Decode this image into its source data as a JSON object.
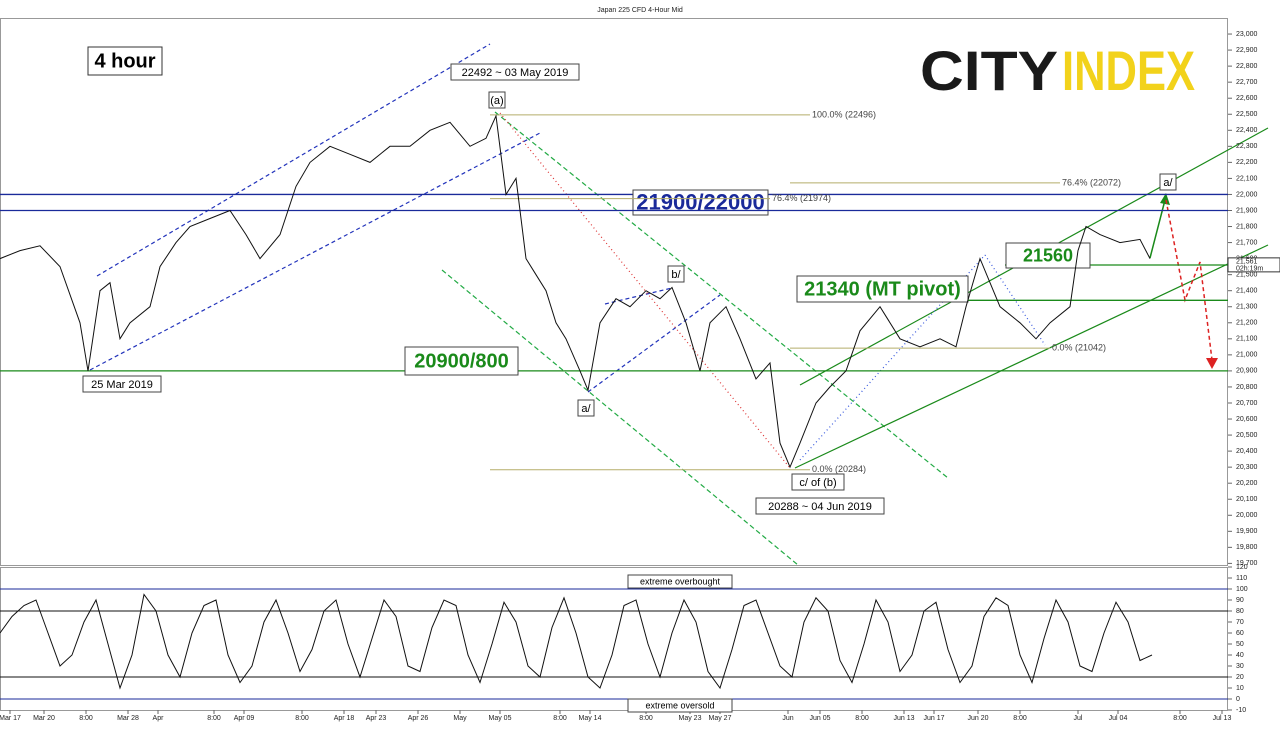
{
  "chart_data": [
    {
      "type": "line",
      "title": "Japan 225 CFD 4-Hour Mid",
      "timeframe": "4 hour",
      "logo": [
        "CITY",
        "INDEX"
      ],
      "last_price": "21,561",
      "countdown": "02h:19m",
      "color": "#111111",
      "x": [
        0,
        10,
        20,
        30,
        40,
        44,
        50,
        55,
        60,
        65,
        75,
        80,
        88,
        95,
        105,
        115,
        123,
        130,
        140,
        148,
        155,
        165,
        175,
        185,
        195,
        205,
        215,
        225,
        235,
        243,
        248,
        253,
        258,
        263,
        268,
        273,
        278,
        283,
        290,
        294,
        300,
        308,
        315,
        323,
        330,
        336,
        343,
        350,
        355,
        363,
        370,
        378,
        385,
        390,
        395,
        400,
        408,
        415,
        423,
        430,
        440,
        450,
        460,
        470,
        478,
        483,
        490,
        495,
        500,
        510,
        518,
        525,
        535,
        539,
        543,
        550,
        560,
        570,
        575
      ],
      "values": [
        21600,
        21650,
        21680,
        21550,
        21200,
        20900,
        21400,
        21450,
        21100,
        21200,
        21300,
        21550,
        21700,
        21800,
        21850,
        21900,
        21750,
        21600,
        21750,
        22050,
        22200,
        22300,
        22250,
        22200,
        22300,
        22300,
        22400,
        22450,
        22300,
        22350,
        22490,
        22000,
        22100,
        21600,
        21500,
        21400,
        21200,
        21100,
        20900,
        20780,
        21200,
        21350,
        21300,
        21400,
        21350,
        21420,
        21200,
        20900,
        21200,
        21300,
        21100,
        20850,
        20950,
        20450,
        20300,
        20450,
        20700,
        20800,
        20900,
        21150,
        21300,
        21100,
        21050,
        21100,
        21050,
        21300,
        21600,
        21450,
        21300,
        21200,
        21100,
        21200,
        21300,
        21650,
        21800,
        21750,
        21700,
        21720,
        21600
      ],
      "xlim": [
        0,
        614
      ],
      "ylim": [
        19690,
        23100
      ],
      "yticks": [
        {
          "value": 19700,
          "label": "19,700"
        },
        {
          "value": 19800,
          "label": "19,800"
        },
        {
          "value": 19900,
          "label": "19,900"
        },
        {
          "value": 20000,
          "label": "20,000"
        },
        {
          "value": 20100,
          "label": "20,100"
        },
        {
          "value": 20200,
          "label": "20,200"
        },
        {
          "value": 20300,
          "label": "20,300"
        },
        {
          "value": 20400,
          "label": "20,400"
        },
        {
          "value": 20500,
          "label": "20,500"
        },
        {
          "value": 20600,
          "label": "20,600"
        },
        {
          "value": 20700,
          "label": "20,700"
        },
        {
          "value": 20800,
          "label": "20,800"
        },
        {
          "value": 20900,
          "label": "20,900"
        },
        {
          "value": 21000,
          "label": "21,000"
        },
        {
          "value": 21100,
          "label": "21,100"
        },
        {
          "value": 21200,
          "label": "21,200"
        },
        {
          "value": 21300,
          "label": "21,300"
        },
        {
          "value": 21400,
          "label": "21,400"
        },
        {
          "value": 21500,
          "label": "21,500"
        },
        {
          "value": 21600,
          "label": "21,600"
        },
        {
          "value": 21700,
          "label": "21,700"
        },
        {
          "value": 21800,
          "label": "21,800"
        },
        {
          "value": 21900,
          "label": "21,900"
        },
        {
          "value": 22000,
          "label": "22,000"
        },
        {
          "value": 22100,
          "label": "22,100"
        },
        {
          "value": 22200,
          "label": "22,200"
        },
        {
          "value": 22300,
          "label": "22,300"
        },
        {
          "value": 22400,
          "label": "22,400"
        },
        {
          "value": 22500,
          "label": "22,500"
        },
        {
          "value": 22600,
          "label": "22,600"
        },
        {
          "value": 22700,
          "label": "22,700"
        },
        {
          "value": 22800,
          "label": "22,800"
        },
        {
          "value": 22900,
          "label": "22,900"
        },
        {
          "value": 23000,
          "label": "23,000"
        }
      ],
      "xticks": [
        {
          "value": 5,
          "label": "Mar 17"
        },
        {
          "value": 22,
          "label": "Mar 20"
        },
        {
          "value": 43,
          "label": "8:00"
        },
        {
          "value": 64,
          "label": "Mar 28"
        },
        {
          "value": 79,
          "label": "Apr"
        },
        {
          "value": 107,
          "label": "8:00"
        },
        {
          "value": 122,
          "label": "Apr 09"
        },
        {
          "value": 151,
          "label": "8:00"
        },
        {
          "value": 172,
          "label": "Apr 18"
        },
        {
          "value": 188,
          "label": "Apr 23"
        },
        {
          "value": 209,
          "label": "Apr 26"
        },
        {
          "value": 230,
          "label": "May"
        },
        {
          "value": 250,
          "label": "May 05"
        },
        {
          "value": 280,
          "label": "8:00"
        },
        {
          "value": 295,
          "label": "May 14"
        },
        {
          "value": 323,
          "label": "8:00"
        },
        {
          "value": 345,
          "label": "May 23"
        },
        {
          "value": 360,
          "label": "May 27"
        },
        {
          "value": 394,
          "label": "Jun"
        },
        {
          "value": 410,
          "label": "Jun 05"
        },
        {
          "value": 431,
          "label": "8:00"
        },
        {
          "value": 452,
          "label": "Jun 13"
        },
        {
          "value": 467,
          "label": "Jun 17"
        },
        {
          "value": 489,
          "label": "Jun 20"
        },
        {
          "value": 510,
          "label": "8:00"
        },
        {
          "value": 539,
          "label": "Jul"
        },
        {
          "value": 559,
          "label": "Jul 04"
        },
        {
          "value": 590,
          "label": "8:00"
        },
        {
          "value": 611,
          "label": "Jul 13"
        }
      ],
      "levels": [
        {
          "value": 22000,
          "color": "#1a2a9a",
          "label": "21900/22000"
        },
        {
          "value": 21900,
          "color": "#1a2a9a"
        },
        {
          "value": 20900,
          "color": "#1a8a1a",
          "label": "20900/800"
        },
        {
          "value": 21340,
          "color": "#1a8a1a",
          "label": "21340 (MT pivot)"
        },
        {
          "value": 21560,
          "color": "#1a8a1a",
          "label": "21560"
        }
      ],
      "fib": [
        {
          "value": 22496,
          "label": "100.0% (22496)"
        },
        {
          "value": 21974,
          "label": "76.4% (21974)"
        },
        {
          "value": 22072,
          "label": "76.4% (22072)"
        },
        {
          "value": 21042,
          "label": "0.0% (21042)"
        },
        {
          "value": 20284,
          "label": "0.0% (20284)"
        }
      ],
      "annotations": [
        "22492 ~ 03 May 2019",
        "(a)",
        "25 Mar 2019",
        "b/",
        "a/",
        "c/ of (b)",
        "20288 ~ 04 Jun 2019",
        "a/"
      ]
    },
    {
      "type": "line",
      "color": "#111111",
      "x": [
        0,
        6,
        12,
        18,
        24,
        30,
        36,
        42,
        48,
        54,
        60,
        66,
        72,
        78,
        84,
        90,
        96,
        102,
        108,
        114,
        120,
        126,
        132,
        138,
        144,
        150,
        156,
        162,
        168,
        174,
        180,
        186,
        192,
        198,
        204,
        210,
        216,
        222,
        228,
        234,
        240,
        246,
        252,
        258,
        264,
        270,
        276,
        282,
        288,
        294,
        300,
        306,
        312,
        318,
        324,
        330,
        336,
        342,
        348,
        354,
        360,
        366,
        372,
        378,
        384,
        390,
        396,
        402,
        408,
        414,
        420,
        426,
        432,
        438,
        444,
        450,
        456,
        462,
        468,
        474,
        480,
        486,
        492,
        498,
        504,
        510,
        516,
        522,
        528,
        534,
        540,
        546,
        552,
        558,
        564,
        570,
        576
      ],
      "values": [
        60,
        75,
        85,
        90,
        60,
        30,
        40,
        70,
        90,
        50,
        10,
        40,
        95,
        80,
        40,
        20,
        60,
        85,
        90,
        40,
        15,
        30,
        70,
        90,
        60,
        25,
        45,
        80,
        90,
        50,
        20,
        55,
        90,
        75,
        30,
        25,
        65,
        90,
        85,
        40,
        15,
        50,
        88,
        70,
        30,
        20,
        65,
        92,
        60,
        20,
        10,
        40,
        85,
        90,
        50,
        20,
        60,
        90,
        70,
        25,
        10,
        45,
        85,
        90,
        60,
        30,
        20,
        70,
        92,
        80,
        35,
        15,
        50,
        90,
        70,
        25,
        40,
        80,
        88,
        45,
        15,
        30,
        75,
        92,
        85,
        40,
        15,
        55,
        90,
        70,
        30,
        25,
        60,
        88,
        70,
        35,
        40
      ],
      "xlim": [
        0,
        614
      ],
      "ylim": [
        -10,
        120
      ],
      "yticks": [
        -10,
        0,
        10,
        20,
        30,
        40,
        50,
        60,
        70,
        80,
        90,
        100,
        110,
        120
      ],
      "levels": [
        {
          "value": 100,
          "color": "#1a2a9a",
          "label": "extreme overbought"
        },
        {
          "value": 80,
          "color": "#111111"
        },
        {
          "value": 20,
          "color": "#111111"
        },
        {
          "value": 0,
          "color": "#1a2a9a",
          "label": "extreme oversold"
        }
      ]
    }
  ]
}
